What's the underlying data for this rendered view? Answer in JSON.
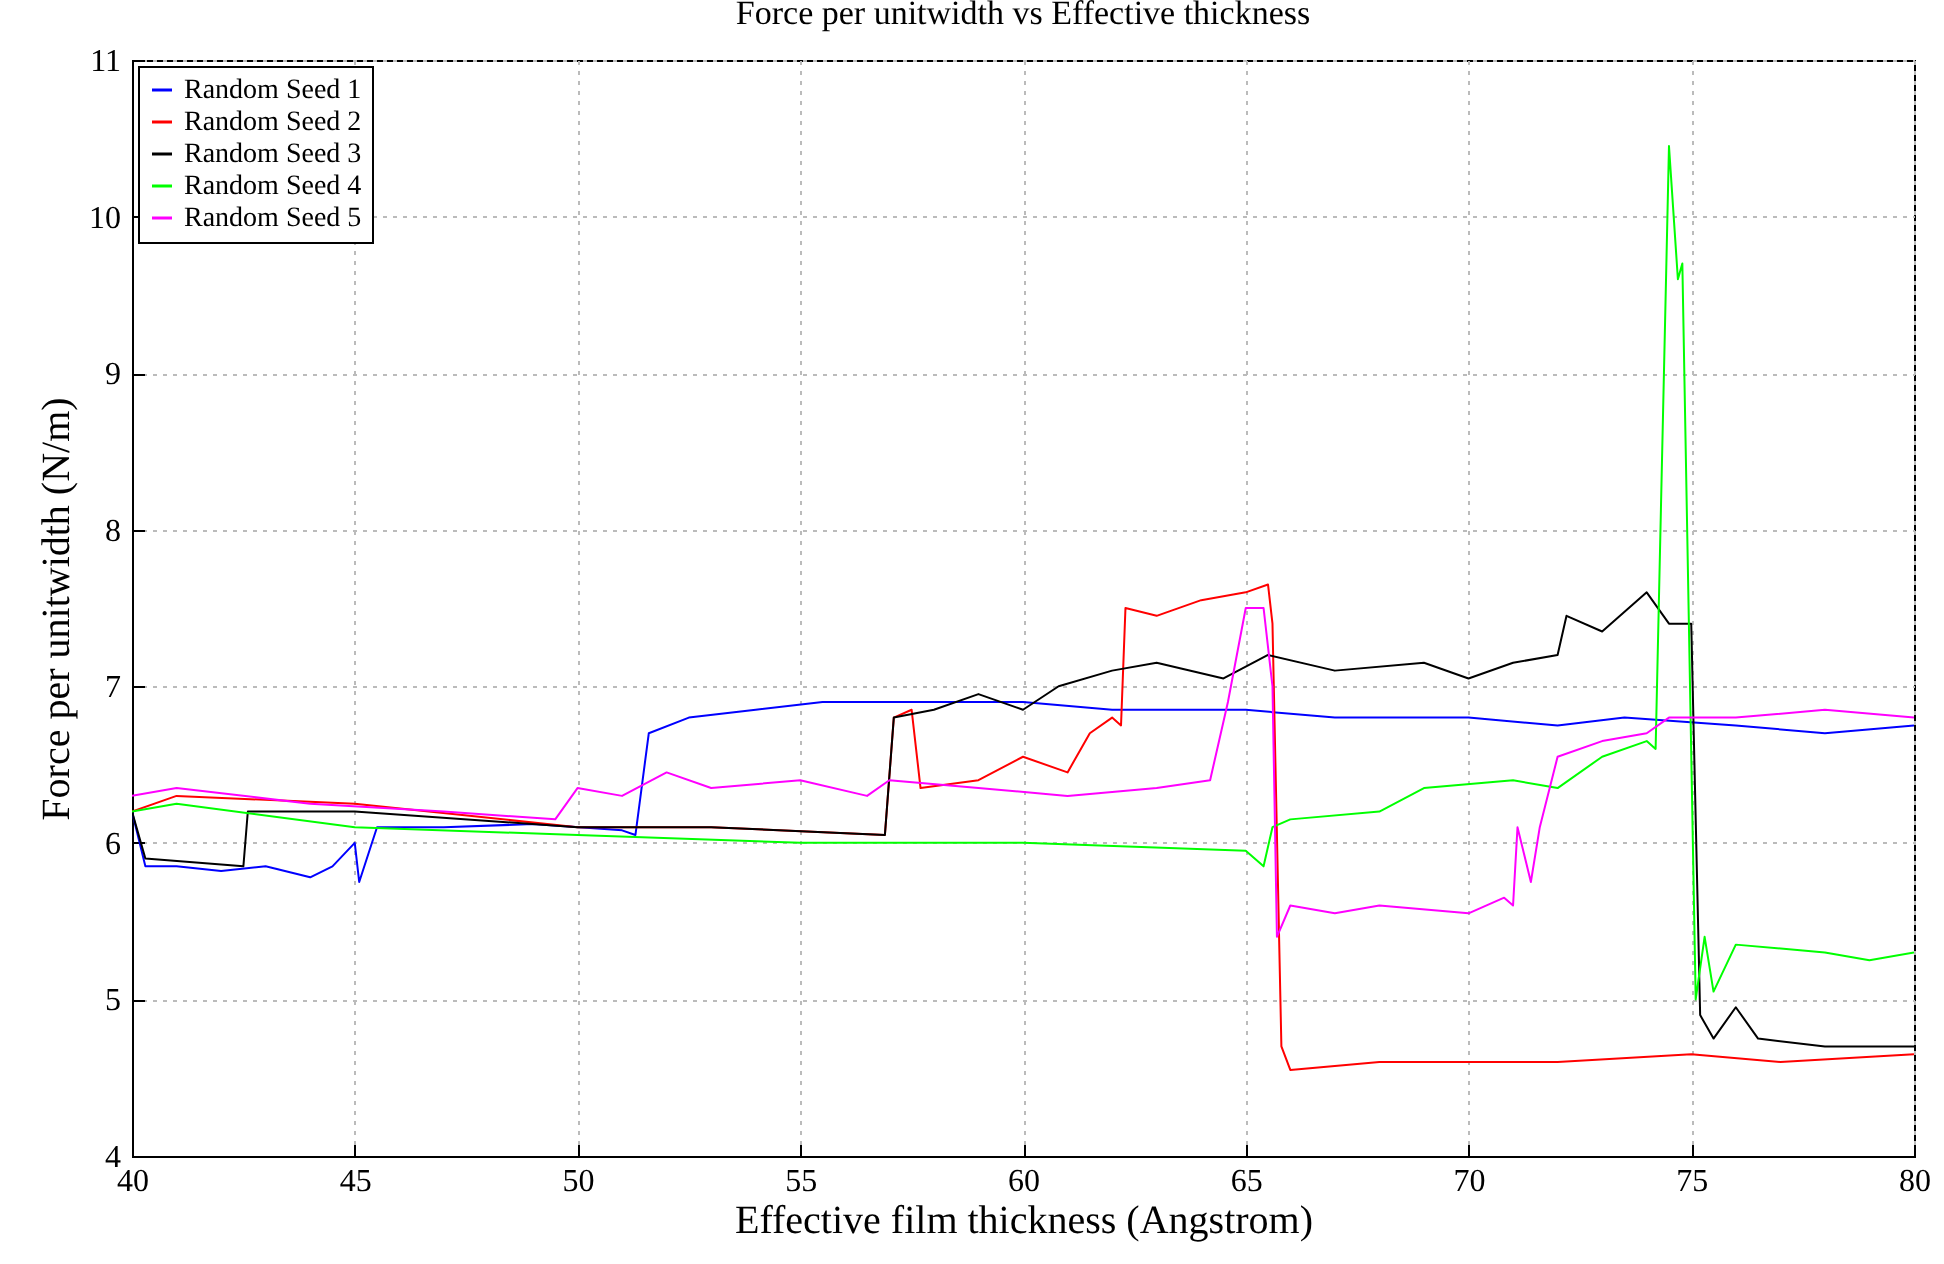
{
  "chart_data": {
    "type": "line",
    "title": "Force per unitwidth vs Effective thickness",
    "xlabel": "Effective film thickness (Angstrom)",
    "ylabel": "Force per unitwidth (N/m)",
    "xlim": [
      40,
      80
    ],
    "xticks": [
      40,
      45,
      50,
      55,
      60,
      65,
      70,
      75,
      80
    ],
    "ylim": [
      4,
      11
    ],
    "yticks": [
      4,
      5,
      6,
      7,
      8,
      9,
      10,
      11
    ],
    "grid": true,
    "legend": "top left",
    "line_style": "solid",
    "series": [
      {
        "name": "Random Seed 1",
        "color": "#0000ff",
        "x": [
          40,
          40.3,
          41,
          42,
          43,
          44,
          44.5,
          45,
          45.1,
          45.5,
          47,
          49,
          51,
          51.3,
          51.6,
          52.5,
          54,
          55.5,
          57,
          60,
          62,
          65,
          67,
          70,
          72,
          73.5,
          76,
          78,
          80
        ],
        "values": [
          6.2,
          5.85,
          5.85,
          5.82,
          5.85,
          5.78,
          5.85,
          6,
          5.75,
          6.1,
          6.1,
          6.12,
          6.08,
          6.05,
          6.7,
          6.8,
          6.85,
          6.9,
          6.9,
          6.9,
          6.85,
          6.85,
          6.8,
          6.8,
          6.75,
          6.8,
          6.75,
          6.7,
          6.75
        ]
      },
      {
        "name": "Random Seed 2",
        "color": "#ff0000",
        "x": [
          40,
          41,
          45,
          50,
          53,
          56.9,
          57.1,
          57.5,
          57.7,
          59,
          60,
          61,
          61.5,
          62,
          62.2,
          62.3,
          63,
          64,
          65,
          65.5,
          65.6,
          65.8,
          66,
          68,
          72,
          75,
          77,
          80
        ],
        "values": [
          6.2,
          6.3,
          6.25,
          6.1,
          6.1,
          6.05,
          6.8,
          6.85,
          6.35,
          6.4,
          6.55,
          6.45,
          6.7,
          6.8,
          6.75,
          7.5,
          7.45,
          7.55,
          7.6,
          7.65,
          7.4,
          4.7,
          4.55,
          4.6,
          4.6,
          4.65,
          4.6,
          4.65
        ]
      },
      {
        "name": "Random Seed 3",
        "color": "#000000",
        "x": [
          40,
          40.3,
          42.5,
          42.6,
          45,
          50,
          53,
          56.9,
          57.1,
          58,
          59,
          60,
          60.8,
          62,
          63,
          64.5,
          65.5,
          67,
          69,
          70,
          71,
          72,
          72.2,
          73,
          74,
          74.5,
          75,
          75.2,
          75.5,
          76,
          76.5,
          78,
          80
        ],
        "values": [
          6.2,
          5.9,
          5.85,
          6.2,
          6.2,
          6.1,
          6.1,
          6.05,
          6.8,
          6.85,
          6.95,
          6.85,
          7,
          7.1,
          7.15,
          7.05,
          7.2,
          7.1,
          7.15,
          7.05,
          7.15,
          7.2,
          7.45,
          7.35,
          7.6,
          7.4,
          7.4,
          4.9,
          4.75,
          4.95,
          4.75,
          4.7,
          4.7
        ]
      },
      {
        "name": "Random Seed 4",
        "color": "#00ff00",
        "x": [
          40,
          41,
          45,
          50,
          55,
          60,
          65,
          65.4,
          65.6,
          66,
          68,
          69,
          71,
          72,
          73,
          74,
          74.2,
          74.5,
          74.7,
          74.8,
          75.1,
          75.3,
          75.5,
          76,
          78,
          79,
          80
        ],
        "values": [
          6.2,
          6.25,
          6.1,
          6.05,
          6,
          6,
          5.95,
          5.85,
          6.1,
          6.15,
          6.2,
          6.35,
          6.4,
          6.35,
          6.55,
          6.65,
          6.6,
          10.45,
          9.6,
          9.7,
          5,
          5.4,
          5.05,
          5.35,
          5.3,
          5.25,
          5.3
        ]
      },
      {
        "name": "Random Seed 5",
        "color": "#ff00ff",
        "x": [
          40,
          41,
          44,
          47,
          49.5,
          50,
          51,
          52,
          53,
          55,
          56.5,
          57,
          59,
          61,
          63,
          64.2,
          64.6,
          65,
          65.4,
          65.6,
          65.7,
          66,
          67,
          68,
          70,
          70.8,
          71,
          71.1,
          71.4,
          71.6,
          72,
          73,
          74,
          74.5,
          76,
          78,
          80
        ],
        "values": [
          6.3,
          6.35,
          6.25,
          6.2,
          6.15,
          6.35,
          6.3,
          6.45,
          6.35,
          6.4,
          6.3,
          6.4,
          6.35,
          6.3,
          6.35,
          6.4,
          6.9,
          7.5,
          7.5,
          7,
          5.4,
          5.6,
          5.55,
          5.6,
          5.55,
          5.65,
          5.6,
          6.1,
          5.75,
          6.1,
          6.55,
          6.65,
          6.7,
          6.8,
          6.8,
          6.85,
          6.8
        ]
      }
    ]
  }
}
